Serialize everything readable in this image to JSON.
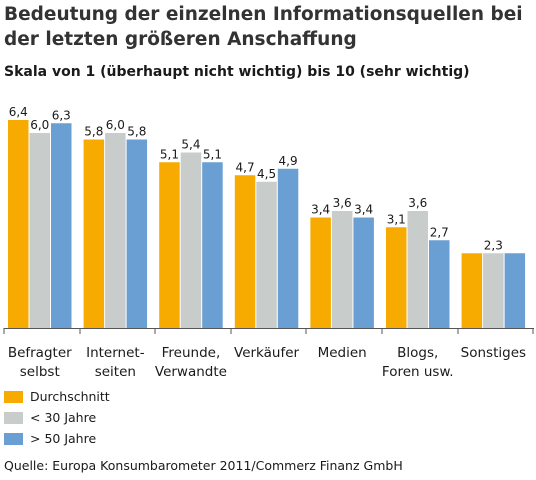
{
  "chart_data": {
    "type": "bar",
    "title": "Bedeutung der einzelnen Informationsquellen bei der letzten größeren Anschaffung",
    "subtitle": "Skala von 1 (überhaupt nicht wichtig) bis 10 (sehr wichtig)",
    "categories": [
      [
        "Befragter",
        "selbst"
      ],
      [
        "Internet-",
        "seiten"
      ],
      [
        "Freunde,",
        "Verwandte"
      ],
      [
        "Verkäufer"
      ],
      [
        "Medien"
      ],
      [
        "Blogs,",
        "Foren usw."
      ],
      [
        "Sonstiges"
      ]
    ],
    "series": [
      {
        "name": "Durchschnitt",
        "color": "#f7ab00",
        "values": [
          6.4,
          5.8,
          5.1,
          4.7,
          3.4,
          3.1,
          2.3
        ],
        "labels": [
          "6,4",
          "5,8",
          "5,1",
          "4,7",
          "3,4",
          "3,1",
          ""
        ]
      },
      {
        "name": "< 30 Jahre",
        "color": "#c8cdcb",
        "values": [
          6.0,
          6.0,
          5.4,
          4.5,
          3.6,
          3.6,
          2.3
        ],
        "labels": [
          "6,0",
          "6,0",
          "5,4",
          "4,5",
          "3,6",
          "3,6",
          "2,3"
        ]
      },
      {
        "name": "> 50 Jahre",
        "color": "#6a9fd4",
        "values": [
          6.3,
          5.8,
          5.1,
          4.9,
          3.4,
          2.7,
          2.3
        ],
        "labels": [
          "6,3",
          "5,8",
          "5,1",
          "4,9",
          "3,4",
          "2,7",
          ""
        ]
      }
    ],
    "ylim": [
      0,
      7
    ],
    "grid": false,
    "legend_position": "bottom-left"
  },
  "source": "Quelle: Europa Konsumbarometer 2011/Commerz Finanz GmbH"
}
